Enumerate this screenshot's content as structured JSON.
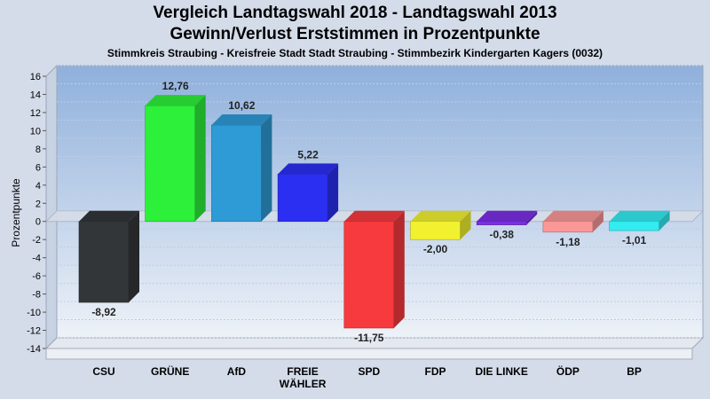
{
  "chart_data": {
    "type": "bar",
    "title": "Vergleich Landtagswahl 2018 - Landtagswahl 2013",
    "subtitle": "Gewinn/Verlust Erststimmen in Prozentpunkte",
    "caption": "Stimmkreis Straubing - Kreisfreie Stadt Stadt Straubing - Stimmbezirk Kindergarten Kagers (0032)",
    "ylabel": "Prozentpunkte",
    "xlabel": "",
    "ylim": [
      -14,
      16
    ],
    "yticks": [
      "16",
      "14",
      "12",
      "10",
      "8",
      "6",
      "4",
      "2",
      "0",
      "-2",
      "-4",
      "-6",
      "-8",
      "-10",
      "-12",
      "-14"
    ],
    "grid": true,
    "categories": [
      [
        "CSU"
      ],
      [
        "GRÜNE"
      ],
      [
        "AfD"
      ],
      [
        "FREIE",
        "WÄHLER"
      ],
      [
        "SPD"
      ],
      [
        "FDP"
      ],
      [
        "DIE LINKE"
      ],
      [
        "ÖDP"
      ],
      [
        "BP"
      ]
    ],
    "values": [
      -8.92,
      12.76,
      10.62,
      5.22,
      -11.75,
      -2.0,
      -0.38,
      -1.18,
      -1.01
    ],
    "value_labels": [
      "-8,92",
      "12,76",
      "10,62",
      "5,22",
      "-11,75",
      "-2,00",
      "-0,38",
      "-1,18",
      "-1,01"
    ],
    "colors": [
      "#333639",
      "#2df03a",
      "#2f9bd6",
      "#2b2ff2",
      "#f73a3e",
      "#f1f130",
      "#7a2fe3",
      "#fa9898",
      "#33ecf2"
    ]
  }
}
